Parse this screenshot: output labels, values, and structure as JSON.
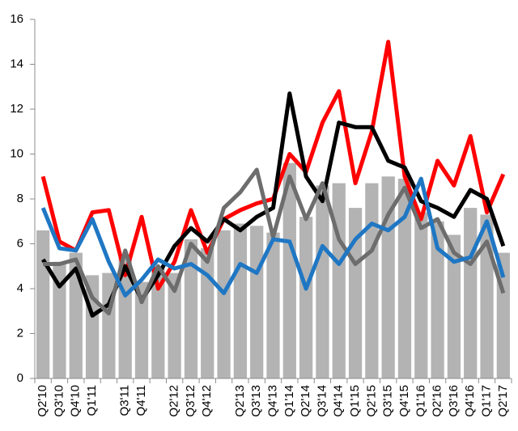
{
  "chart_data": {
    "type": "combo",
    "categories": [
      "Q2'10",
      "Q3'10",
      "Q4'10",
      "Q1'11",
      null,
      "Q3'11",
      "Q4'11",
      null,
      "Q2'12",
      "Q3'12",
      "Q4'12",
      null,
      "Q2'13",
      "Q3'13",
      "Q4'13",
      "Q1'14",
      "Q2'14",
      "Q3'14",
      "Q4'14",
      "Q1'15",
      "Q2'15",
      "Q3'15",
      "Q4'15",
      "Q1'16",
      "Q2'16",
      "Q3'16",
      "Q4'16",
      "Q1'17",
      "Q2'17"
    ],
    "series": [
      {
        "type": "bar",
        "color": "#b3b3b3",
        "values": [
          6.6,
          5.2,
          5.6,
          4.6,
          4.7,
          5.5,
          4.3,
          5.0,
          4.7,
          6.2,
          5.8,
          6.6,
          6.9,
          6.8,
          6.5,
          9.6,
          7.2,
          8.6,
          8.7,
          7.6,
          8.7,
          9.0,
          8.9,
          7.4,
          7.0,
          6.4,
          7.6,
          7.3,
          5.6
        ]
      },
      {
        "type": "line",
        "color": "#ff0000",
        "values": [
          9.0,
          6.1,
          5.7,
          7.4,
          7.5,
          4.6,
          7.2,
          4.0,
          5.2,
          7.5,
          5.6,
          7.1,
          7.5,
          7.8,
          8.0,
          10.0,
          9.2,
          11.4,
          12.8,
          8.7,
          11.0,
          15.0,
          9.0,
          7.1,
          9.7,
          8.6,
          10.8,
          7.4,
          9.1
        ]
      },
      {
        "type": "line",
        "color": "#000000",
        "values": [
          5.3,
          4.1,
          4.9,
          2.8,
          3.3,
          5.0,
          3.5,
          4.6,
          5.9,
          6.7,
          6.1,
          7.1,
          6.6,
          7.2,
          7.6,
          12.7,
          9.0,
          7.9,
          11.4,
          11.2,
          11.2,
          9.7,
          9.4,
          7.9,
          7.6,
          7.2,
          8.4,
          8.0,
          5.9
        ]
      },
      {
        "type": "line",
        "color": "#6d6d6d",
        "values": [
          5.1,
          5.1,
          5.3,
          3.6,
          2.9,
          5.7,
          3.4,
          5.0,
          3.9,
          6.0,
          5.2,
          7.6,
          8.3,
          9.3,
          6.3,
          9.0,
          7.1,
          8.7,
          6.2,
          5.1,
          5.7,
          7.3,
          8.5,
          6.7,
          7.1,
          5.6,
          5.1,
          6.1,
          3.8
        ]
      },
      {
        "type": "line",
        "color": "#1f77c4",
        "values": [
          7.6,
          5.8,
          5.7,
          7.1,
          5.2,
          3.7,
          4.4,
          5.3,
          4.9,
          5.1,
          4.6,
          3.8,
          5.1,
          4.7,
          6.2,
          6.1,
          4.0,
          5.9,
          5.1,
          6.2,
          6.9,
          6.6,
          7.2,
          8.9,
          5.8,
          5.2,
          5.4,
          7.0,
          4.5
        ]
      }
    ],
    "ylim": [
      0,
      16
    ],
    "yticks": [
      0,
      2,
      4,
      6,
      8,
      10,
      12,
      14,
      16
    ]
  }
}
